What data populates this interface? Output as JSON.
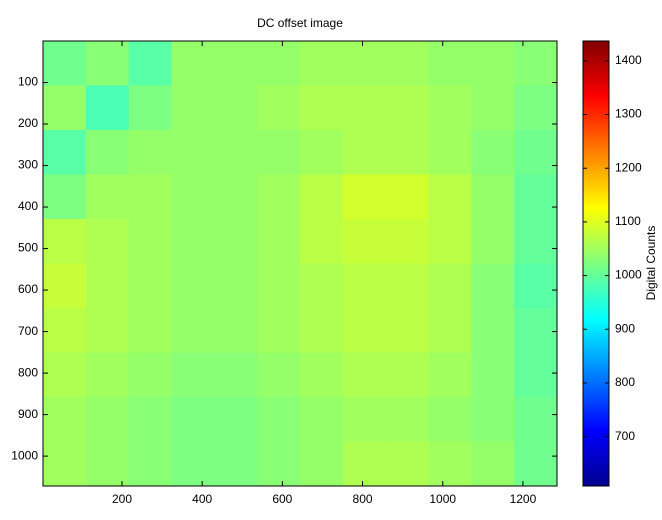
{
  "chart_data": {
    "type": "heatmap",
    "title": "DC offset image",
    "colorbar_label": "Digital Counts",
    "colormap": "jet",
    "xlim": [
      3,
      1285
    ],
    "xticks": [
      200,
      400,
      600,
      800,
      1000,
      1200
    ],
    "ylim": [
      0,
      1072
    ],
    "y_reversed": true,
    "yticks": [
      100,
      200,
      300,
      400,
      500,
      600,
      700,
      800,
      900,
      1000
    ],
    "clim": [
      608,
      1437
    ],
    "cticks": [
      700,
      800,
      900,
      1000,
      1100,
      1200,
      1300,
      1400
    ],
    "z": [
      [
        1010,
        1030,
        990,
        1040,
        1040,
        1040,
        1050,
        1050,
        1050,
        1040,
        1040,
        1030
      ],
      [
        1040,
        980,
        1020,
        1040,
        1040,
        1050,
        1060,
        1060,
        1060,
        1050,
        1040,
        1020
      ],
      [
        990,
        1030,
        1040,
        1040,
        1040,
        1040,
        1050,
        1060,
        1060,
        1050,
        1030,
        1010
      ],
      [
        1020,
        1050,
        1050,
        1040,
        1040,
        1050,
        1070,
        1090,
        1090,
        1070,
        1040,
        1000
      ],
      [
        1070,
        1060,
        1050,
        1040,
        1040,
        1050,
        1070,
        1080,
        1080,
        1070,
        1040,
        1000
      ],
      [
        1080,
        1060,
        1050,
        1040,
        1040,
        1050,
        1060,
        1070,
        1070,
        1060,
        1030,
        990
      ],
      [
        1070,
        1060,
        1050,
        1040,
        1040,
        1050,
        1060,
        1070,
        1070,
        1060,
        1030,
        1000
      ],
      [
        1060,
        1050,
        1040,
        1030,
        1030,
        1040,
        1050,
        1060,
        1060,
        1050,
        1030,
        1000
      ],
      [
        1050,
        1040,
        1030,
        1020,
        1020,
        1030,
        1040,
        1050,
        1050,
        1040,
        1030,
        1010
      ],
      [
        1050,
        1040,
        1030,
        1020,
        1020,
        1030,
        1040,
        1060,
        1060,
        1050,
        1040,
        1010
      ]
    ]
  }
}
